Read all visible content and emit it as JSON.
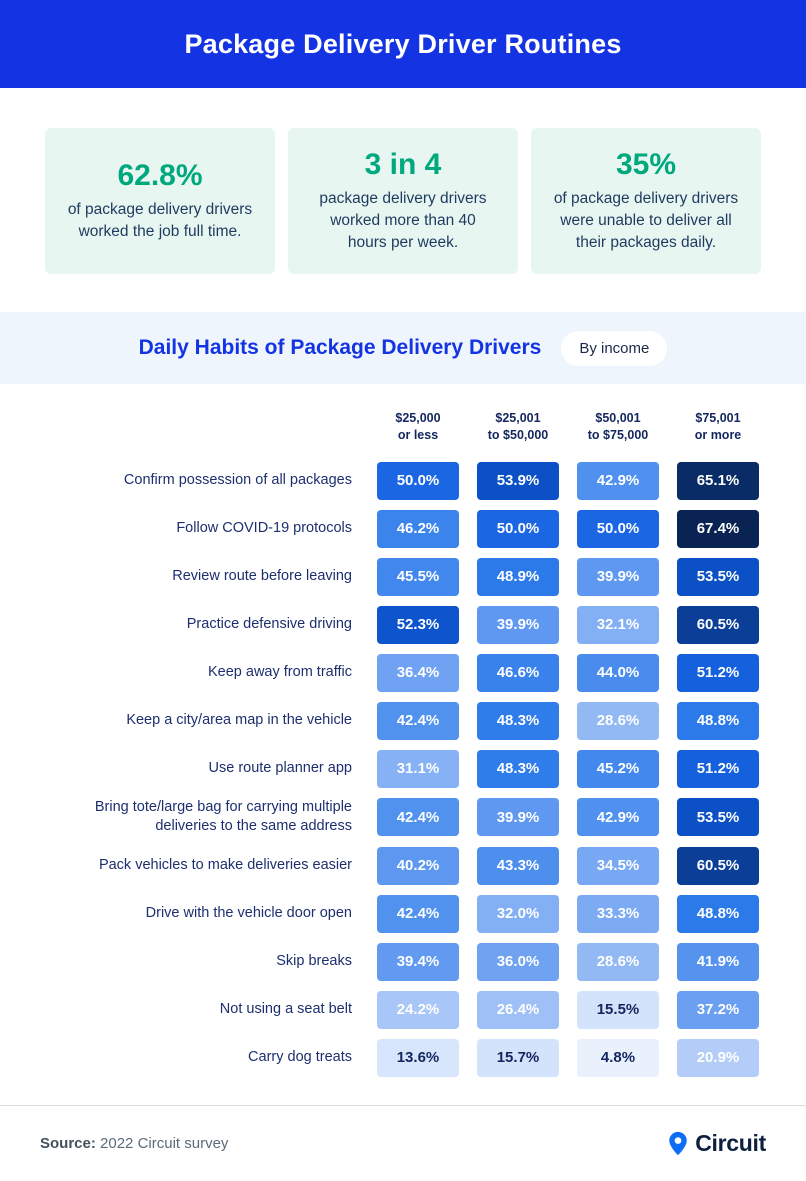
{
  "header": {
    "title": "Package Delivery Driver Routines"
  },
  "stats": [
    {
      "value": "62.8%",
      "text": "of package delivery drivers worked the job full time."
    },
    {
      "value": "3 in 4",
      "text": "package delivery drivers worked more than 40 hours per week."
    },
    {
      "value": "35%",
      "text": "of package delivery drivers were unable to deliver all their packages daily."
    }
  ],
  "section": {
    "title": "Daily Habits of Package Delivery Drivers",
    "badge": "By income"
  },
  "chart_data": {
    "type": "heatmap",
    "title": "Daily Habits of Package Delivery Drivers",
    "group_by": "By income",
    "columns": [
      "$25,000\nor less",
      "$25,001\nto $50,000",
      "$50,001\nto $75,000",
      "$75,001\nor more"
    ],
    "rows": [
      {
        "label": "Confirm possession of all packages",
        "cells": [
          {
            "value": "50.0%",
            "num": 50.0,
            "bg": "#1b66e3",
            "fg": "#ffffff"
          },
          {
            "value": "53.9%",
            "num": 53.9,
            "bg": "#0c50c6",
            "fg": "#ffffff"
          },
          {
            "value": "42.9%",
            "num": 42.9,
            "bg": "#5090ee",
            "fg": "#ffffff"
          },
          {
            "value": "65.1%",
            "num": 65.1,
            "bg": "#0a2c66",
            "fg": "#ffffff"
          }
        ]
      },
      {
        "label": "Follow COVID-19 protocols",
        "cells": [
          {
            "value": "46.2%",
            "num": 46.2,
            "bg": "#3b84ec",
            "fg": "#ffffff"
          },
          {
            "value": "50.0%",
            "num": 50.0,
            "bg": "#1b66e3",
            "fg": "#ffffff"
          },
          {
            "value": "50.0%",
            "num": 50.0,
            "bg": "#1b66e3",
            "fg": "#ffffff"
          },
          {
            "value": "67.4%",
            "num": 67.4,
            "bg": "#092452",
            "fg": "#ffffff"
          }
        ]
      },
      {
        "label": "Review route before leaving",
        "cells": [
          {
            "value": "45.5%",
            "num": 45.5,
            "bg": "#4187ed",
            "fg": "#ffffff"
          },
          {
            "value": "48.9%",
            "num": 48.9,
            "bg": "#2c7aea",
            "fg": "#ffffff"
          },
          {
            "value": "39.9%",
            "num": 39.9,
            "bg": "#5f98f0",
            "fg": "#ffffff"
          },
          {
            "value": "53.5%",
            "num": 53.5,
            "bg": "#0c50c6",
            "fg": "#ffffff"
          }
        ]
      },
      {
        "label": "Practice defensive driving",
        "cells": [
          {
            "value": "52.3%",
            "num": 52.3,
            "bg": "#0e54cc",
            "fg": "#ffffff"
          },
          {
            "value": "39.9%",
            "num": 39.9,
            "bg": "#5f98f0",
            "fg": "#ffffff"
          },
          {
            "value": "32.1%",
            "num": 32.1,
            "bg": "#83aff4",
            "fg": "#ffffff"
          },
          {
            "value": "60.5%",
            "num": 60.5,
            "bg": "#0b3f97",
            "fg": "#ffffff"
          }
        ]
      },
      {
        "label": "Keep away from traffic",
        "cells": [
          {
            "value": "36.4%",
            "num": 36.4,
            "bg": "#6fa2f2",
            "fg": "#ffffff"
          },
          {
            "value": "46.6%",
            "num": 46.6,
            "bg": "#3982ec",
            "fg": "#ffffff"
          },
          {
            "value": "44.0%",
            "num": 44.0,
            "bg": "#498cee",
            "fg": "#ffffff"
          },
          {
            "value": "51.2%",
            "num": 51.2,
            "bg": "#1560dd",
            "fg": "#ffffff"
          }
        ]
      },
      {
        "label": "Keep a city/area map in the vehicle",
        "cells": [
          {
            "value": "42.4%",
            "num": 42.4,
            "bg": "#5292ef",
            "fg": "#ffffff"
          },
          {
            "value": "48.3%",
            "num": 48.3,
            "bg": "#2f7ceb",
            "fg": "#ffffff"
          },
          {
            "value": "28.6%",
            "num": 28.6,
            "bg": "#93b9f5",
            "fg": "#ffffff"
          },
          {
            "value": "48.8%",
            "num": 48.8,
            "bg": "#2c7aea",
            "fg": "#ffffff"
          }
        ]
      },
      {
        "label": "Use route planner app",
        "cells": [
          {
            "value": "31.1%",
            "num": 31.1,
            "bg": "#86b1f4",
            "fg": "#ffffff"
          },
          {
            "value": "48.3%",
            "num": 48.3,
            "bg": "#2f7ceb",
            "fg": "#ffffff"
          },
          {
            "value": "45.2%",
            "num": 45.2,
            "bg": "#4388ed",
            "fg": "#ffffff"
          },
          {
            "value": "51.2%",
            "num": 51.2,
            "bg": "#1560dd",
            "fg": "#ffffff"
          }
        ]
      },
      {
        "label": "Bring tote/large bag for carrying multiple deliveries to the same address",
        "cells": [
          {
            "value": "42.4%",
            "num": 42.4,
            "bg": "#5292ef",
            "fg": "#ffffff"
          },
          {
            "value": "39.9%",
            "num": 39.9,
            "bg": "#5f98f0",
            "fg": "#ffffff"
          },
          {
            "value": "42.9%",
            "num": 42.9,
            "bg": "#5090ee",
            "fg": "#ffffff"
          },
          {
            "value": "53.5%",
            "num": 53.5,
            "bg": "#0c50c6",
            "fg": "#ffffff"
          }
        ]
      },
      {
        "label": "Pack vehicles to make deliveries easier",
        "cells": [
          {
            "value": "40.2%",
            "num": 40.2,
            "bg": "#5d97f0",
            "fg": "#ffffff"
          },
          {
            "value": "43.3%",
            "num": 43.3,
            "bg": "#4e8fee",
            "fg": "#ffffff"
          },
          {
            "value": "34.5%",
            "num": 34.5,
            "bg": "#78a8f3",
            "fg": "#ffffff"
          },
          {
            "value": "60.5%",
            "num": 60.5,
            "bg": "#0b3f97",
            "fg": "#ffffff"
          }
        ]
      },
      {
        "label": "Drive with the vehicle door open",
        "cells": [
          {
            "value": "42.4%",
            "num": 42.4,
            "bg": "#5292ef",
            "fg": "#ffffff"
          },
          {
            "value": "32.0%",
            "num": 32.0,
            "bg": "#83aff4",
            "fg": "#ffffff"
          },
          {
            "value": "33.3%",
            "num": 33.3,
            "bg": "#7dabf3",
            "fg": "#ffffff"
          },
          {
            "value": "48.8%",
            "num": 48.8,
            "bg": "#2c7aea",
            "fg": "#ffffff"
          }
        ]
      },
      {
        "label": "Skip breaks",
        "cells": [
          {
            "value": "39.4%",
            "num": 39.4,
            "bg": "#619af0",
            "fg": "#ffffff"
          },
          {
            "value": "36.0%",
            "num": 36.0,
            "bg": "#70a2f2",
            "fg": "#ffffff"
          },
          {
            "value": "28.6%",
            "num": 28.6,
            "bg": "#93b9f5",
            "fg": "#ffffff"
          },
          {
            "value": "41.9%",
            "num": 41.9,
            "bg": "#5593ef",
            "fg": "#ffffff"
          }
        ]
      },
      {
        "label": "Not using a seat belt",
        "cells": [
          {
            "value": "24.2%",
            "num": 24.2,
            "bg": "#a8c6f7",
            "fg": "#ffffff"
          },
          {
            "value": "26.4%",
            "num": 26.4,
            "bg": "#9fc0f6",
            "fg": "#ffffff"
          },
          {
            "value": "15.5%",
            "num": 15.5,
            "bg": "#d3e3fb",
            "fg": "#14265e"
          },
          {
            "value": "37.2%",
            "num": 37.2,
            "bg": "#6b9ff1",
            "fg": "#ffffff"
          }
        ]
      },
      {
        "label": "Carry dog treats",
        "cells": [
          {
            "value": "13.6%",
            "num": 13.6,
            "bg": "#d7e6fc",
            "fg": "#14265e"
          },
          {
            "value": "15.7%",
            "num": 15.7,
            "bg": "#d3e3fb",
            "fg": "#14265e"
          },
          {
            "value": "4.8%",
            "num": 4.8,
            "bg": "#e9f1fd",
            "fg": "#14265e"
          },
          {
            "value": "20.9%",
            "num": 20.9,
            "bg": "#b3cdf8",
            "fg": "#ffffff"
          }
        ]
      }
    ]
  },
  "footer": {
    "source_label": "Source:",
    "source_text": "2022 Circuit survey",
    "brand": "Circuit"
  },
  "colors": {
    "header_bg": "#1434e4",
    "accent_blue": "#1434e4",
    "teal": "#00a87e",
    "mint_bg": "#e7f6f0",
    "band_bg": "#eef5fc",
    "navy": "#14265e",
    "pin_blue": "#0d6ef5"
  }
}
